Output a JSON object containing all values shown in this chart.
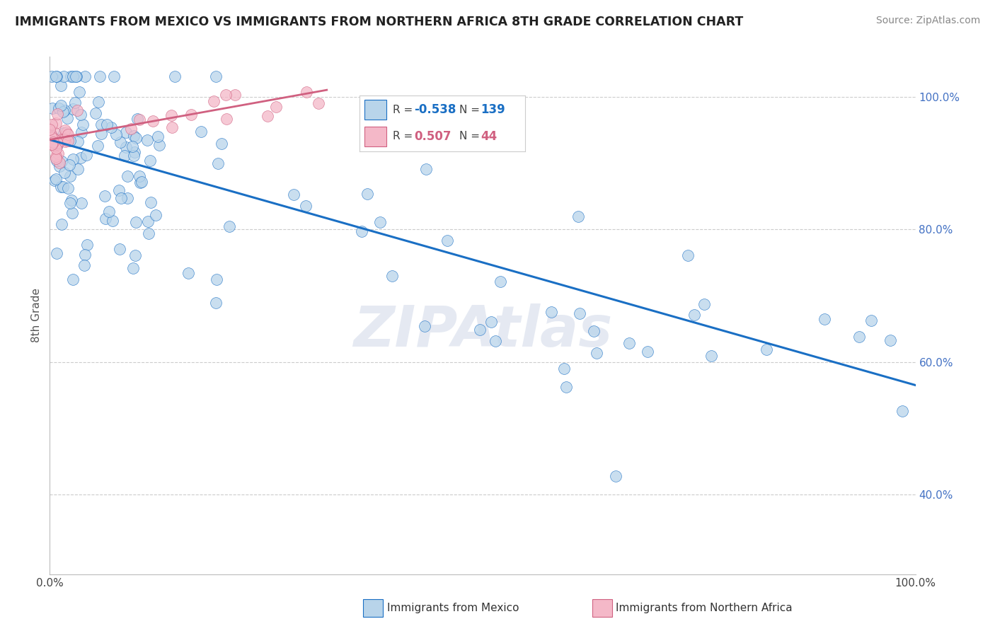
{
  "title": "IMMIGRANTS FROM MEXICO VS IMMIGRANTS FROM NORTHERN AFRICA 8TH GRADE CORRELATION CHART",
  "source": "Source: ZipAtlas.com",
  "ylabel": "8th Grade",
  "xlabel_mexico": "Immigrants from Mexico",
  "xlabel_africa": "Immigrants from Northern Africa",
  "R_mexico": -0.538,
  "N_mexico": 139,
  "R_africa": 0.507,
  "N_africa": 44,
  "color_mexico": "#b8d4ea",
  "color_africa": "#f4b8c8",
  "line_color_mexico": "#1a6fc4",
  "line_color_africa": "#d06080",
  "watermark": "ZIPAtlas",
  "xlim": [
    0.0,
    1.0
  ],
  "ylim": [
    0.28,
    1.06
  ],
  "x_ticks": [
    0.0,
    1.0
  ],
  "x_tick_labels": [
    "0.0%",
    "100.0%"
  ],
  "y_ticks": [
    0.4,
    0.6,
    0.8,
    1.0
  ],
  "y_tick_labels": [
    "40.0%",
    "60.0%",
    "80.0%",
    "100.0%"
  ],
  "trend_mex_x0": 0.0,
  "trend_mex_y0": 0.935,
  "trend_mex_x1": 1.0,
  "trend_mex_y1": 0.565,
  "trend_afr_x0": 0.0,
  "trend_afr_y0": 0.935,
  "trend_afr_x1": 0.32,
  "trend_afr_y1": 1.01
}
